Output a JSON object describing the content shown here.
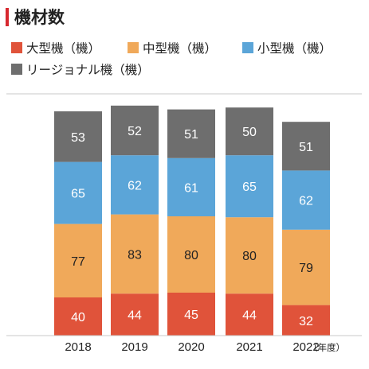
{
  "chart_data": {
    "type": "bar",
    "stacked": true,
    "title": "機材数",
    "categories": [
      "2018",
      "2019",
      "2020",
      "2021",
      "2022"
    ],
    "x_unit": "（年度）",
    "series": [
      {
        "name": "大型機（機）",
        "color": "#e0533a",
        "values": [
          40,
          44,
          45,
          44,
          32
        ]
      },
      {
        "name": "中型機（機）",
        "color": "#f0a95a",
        "values": [
          77,
          83,
          80,
          80,
          79
        ]
      },
      {
        "name": "小型機（機）",
        "color": "#5ba5d8",
        "values": [
          65,
          62,
          61,
          65,
          62
        ]
      },
      {
        "name": "リージョナル機（機）",
        "color": "#6e6e6e",
        "values": [
          53,
          52,
          51,
          50,
          51
        ]
      }
    ],
    "accent_color": "#d7282f",
    "legend_position": "top-left",
    "grid": false
  }
}
